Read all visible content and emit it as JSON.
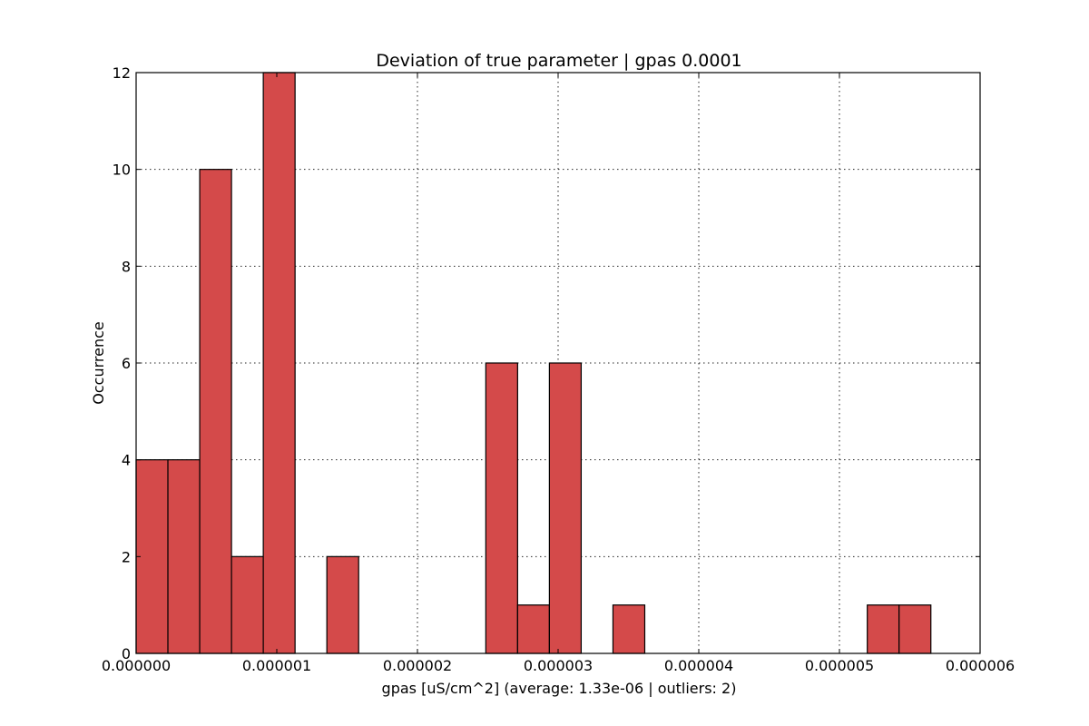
{
  "chart_data": {
    "type": "bar",
    "title": "Deviation of true parameter | gpas 0.0001",
    "xlabel": "gpas [uS/cm^2] (average: 1.33e-06 | outliers: 2)",
    "ylabel": "Occurrence",
    "xlim": [
      0,
      6e-06
    ],
    "ylim": [
      0,
      12
    ],
    "grid": true,
    "bar_color": "#d44a4a",
    "x_ticks": [
      0,
      1e-06,
      2e-06,
      3e-06,
      4e-06,
      5e-06,
      6e-06
    ],
    "x_tick_labels": [
      "0.000000",
      "0.000001",
      "0.000002",
      "0.000003",
      "0.000004",
      "0.000005",
      "0.000006"
    ],
    "y_ticks": [
      0,
      2,
      4,
      6,
      8,
      10,
      12
    ],
    "y_tick_labels": [
      "0",
      "2",
      "4",
      "6",
      "8",
      "10",
      "12"
    ],
    "bin_width": 2.26e-07,
    "bins": [
      {
        "x0": 0.0,
        "count": 4
      },
      {
        "x0": 2.26e-07,
        "count": 4
      },
      {
        "x0": 4.52e-07,
        "count": 10
      },
      {
        "x0": 6.78e-07,
        "count": 2
      },
      {
        "x0": 9.04e-07,
        "count": 12
      },
      {
        "x0": 1.13e-06,
        "count": 0
      },
      {
        "x0": 1.356e-06,
        "count": 2
      },
      {
        "x0": 1.582e-06,
        "count": 0
      },
      {
        "x0": 1.808e-06,
        "count": 0
      },
      {
        "x0": 2.034e-06,
        "count": 0
      },
      {
        "x0": 2.26e-06,
        "count": 0
      },
      {
        "x0": 2.486e-06,
        "count": 6
      },
      {
        "x0": 2.712e-06,
        "count": 1
      },
      {
        "x0": 2.938e-06,
        "count": 6
      },
      {
        "x0": 3.164e-06,
        "count": 0
      },
      {
        "x0": 3.39e-06,
        "count": 1
      },
      {
        "x0": 3.616e-06,
        "count": 0
      },
      {
        "x0": 3.842e-06,
        "count": 0
      },
      {
        "x0": 4.068e-06,
        "count": 0
      },
      {
        "x0": 4.294e-06,
        "count": 0
      },
      {
        "x0": 4.52e-06,
        "count": 0
      },
      {
        "x0": 4.746e-06,
        "count": 0
      },
      {
        "x0": 4.972e-06,
        "count": 0
      },
      {
        "x0": 5.198e-06,
        "count": 1
      },
      {
        "x0": 5.424e-06,
        "count": 1
      }
    ]
  }
}
